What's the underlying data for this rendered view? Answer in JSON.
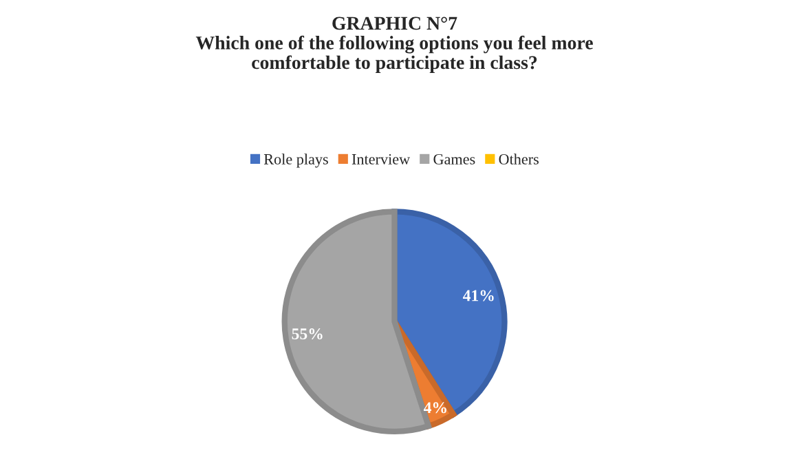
{
  "chart_data": {
    "type": "pie",
    "title": "GRAPHIC N°7\nWhich one of the following options you feel more\ncomfortable to participate in class?",
    "categories": [
      "Role plays",
      "Interview",
      "Games",
      "Others"
    ],
    "values": [
      41,
      4,
      55,
      0
    ],
    "colors": [
      "#4472c4",
      "#ed7d31",
      "#a5a5a5",
      "#ffc000"
    ],
    "value_labels": [
      "41%",
      "4%",
      "55%",
      null
    ],
    "legend": "top"
  }
}
